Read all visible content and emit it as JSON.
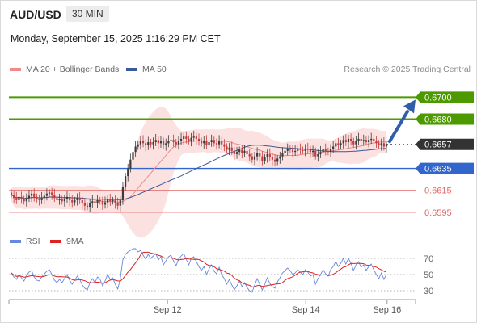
{
  "header": {
    "symbol": "AUD/USD",
    "timeframe": "30 MIN",
    "datetime": "Monday, September 15, 2025 1:16:29 PM CET"
  },
  "legend": {
    "ma_bb": "MA 20 + Bollinger Bands",
    "ma50": "MA 50",
    "credit": "Research © 2025 Trading Central"
  },
  "colors": {
    "up": "#3b3b3b",
    "down": "#c23b3b",
    "support": "#3366cc",
    "resistance": "#4c9a00",
    "red_level": "#e06666",
    "bb_fill": "#fcdcdc",
    "ma20": "#e88b8b",
    "ma50": "#3b5a99",
    "rsi": "#6688dd",
    "rsi_ma": "#dd2222",
    "arrow": "#2f5fa8"
  },
  "chart_data": {
    "type": "candlestick",
    "price_range": [
      0.6575,
      0.6715
    ],
    "x_ticks": [
      "Sep 12",
      "Sep 14",
      "Sep 16"
    ],
    "last_price": {
      "label": "0.6657",
      "value": 0.6657
    },
    "levels": [
      {
        "label": "0.6700",
        "value": 0.67,
        "kind": "resistance"
      },
      {
        "label": "0.6680",
        "value": 0.668,
        "kind": "resistance"
      },
      {
        "label": "0.6635",
        "value": 0.6635,
        "kind": "support"
      },
      {
        "label": "0.6615",
        "value": 0.6615,
        "kind": "level"
      },
      {
        "label": "0.6595",
        "value": 0.6595,
        "kind": "level"
      }
    ],
    "close": [
      0.6611,
      0.6608,
      0.6606,
      0.6609,
      0.6607,
      0.6605,
      0.6608,
      0.661,
      0.6612,
      0.6609,
      0.6607,
      0.6606,
      0.6608,
      0.661,
      0.6612,
      0.6613,
      0.6611,
      0.6608,
      0.6606,
      0.6607,
      0.6605,
      0.6607,
      0.6609,
      0.6606,
      0.6604,
      0.6606,
      0.6608,
      0.6606,
      0.6603,
      0.6601,
      0.66,
      0.6603,
      0.6605,
      0.6603,
      0.6606,
      0.6605,
      0.6602,
      0.6604,
      0.6607,
      0.6605,
      0.6606,
      0.6603,
      0.6601,
      0.6606,
      0.6618,
      0.6628,
      0.6635,
      0.6643,
      0.665,
      0.6655,
      0.6657,
      0.666,
      0.6658,
      0.6656,
      0.6659,
      0.6657,
      0.6659,
      0.6661,
      0.6658,
      0.666,
      0.6656,
      0.6658,
      0.666,
      0.6661,
      0.6659,
      0.6657,
      0.666,
      0.6662,
      0.6664,
      0.6662,
      0.666,
      0.6663,
      0.6664,
      0.6662,
      0.666,
      0.6658,
      0.666,
      0.6656,
      0.6659,
      0.6661,
      0.6658,
      0.6657,
      0.666,
      0.6657,
      0.6655,
      0.6652,
      0.6654,
      0.6651,
      0.6648,
      0.665,
      0.6652,
      0.6649,
      0.6651,
      0.6648,
      0.6646,
      0.6643,
      0.6646,
      0.6649,
      0.6646,
      0.6642,
      0.6645,
      0.6648,
      0.6645,
      0.6643,
      0.6641,
      0.6644,
      0.6646,
      0.6649,
      0.6651,
      0.6653,
      0.6652,
      0.665,
      0.6651,
      0.6653,
      0.6652,
      0.6651,
      0.6653,
      0.6652,
      0.665,
      0.6651,
      0.6646,
      0.6648,
      0.665,
      0.6653,
      0.6651,
      0.665,
      0.6653,
      0.6655,
      0.6658,
      0.6656,
      0.6658,
      0.6661,
      0.6659,
      0.6662,
      0.666,
      0.6657,
      0.666,
      0.6662,
      0.666,
      0.6661,
      0.6659,
      0.6661,
      0.6662,
      0.666,
      0.6658,
      0.6656,
      0.6658,
      0.6655,
      0.6657
    ],
    "rsi": {
      "legend": [
        "RSI",
        "9MA"
      ],
      "levels": [
        70,
        50,
        30
      ],
      "range": [
        20,
        80
      ],
      "values": [
        52,
        47,
        44,
        50,
        46,
        42,
        49,
        53,
        55,
        47,
        43,
        42,
        47,
        51,
        54,
        56,
        50,
        43,
        40,
        44,
        40,
        45,
        50,
        43,
        38,
        43,
        48,
        44,
        37,
        33,
        31,
        40,
        45,
        40,
        47,
        44,
        36,
        42,
        50,
        44,
        46,
        38,
        32,
        45,
        68,
        75,
        78,
        80,
        82,
        82,
        78,
        80,
        74,
        69,
        75,
        70,
        73,
        76,
        68,
        72,
        62,
        67,
        72,
        74,
        67,
        61,
        69,
        73,
        76,
        69,
        62,
        70,
        72,
        66,
        60,
        55,
        60,
        50,
        57,
        62,
        54,
        51,
        59,
        50,
        45,
        38,
        44,
        37,
        31,
        36,
        42,
        35,
        40,
        34,
        30,
        28,
        37,
        45,
        38,
        31,
        38,
        46,
        39,
        35,
        33,
        41,
        46,
        52,
        55,
        58,
        55,
        50,
        52,
        56,
        53,
        50,
        56,
        53,
        48,
        50,
        38,
        45,
        50,
        56,
        51,
        48,
        56,
        60,
        66,
        60,
        64,
        70,
        63,
        70,
        64,
        55,
        62,
        66,
        59,
        62,
        55,
        60,
        63,
        56,
        50,
        45,
        52,
        44,
        50
      ]
    }
  }
}
